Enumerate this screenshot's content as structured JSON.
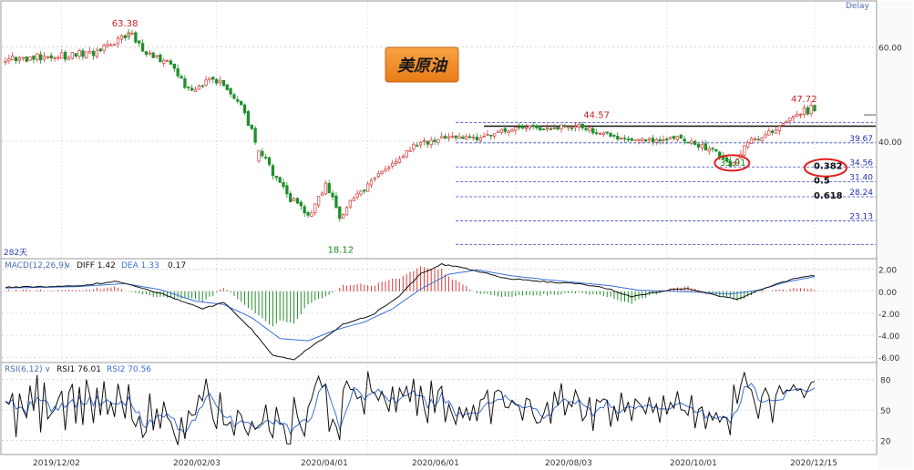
{
  "badge_text": "美原油",
  "delay_text": "Delay",
  "days_label": "282天",
  "macd": {
    "label": "MACD(12,26,9)",
    "diff_label": "DIFF 1.42",
    "dea_label": "DEA 1.33",
    "hist_label": "0.17"
  },
  "rsi": {
    "label": "RSI(6,12)",
    "rsi1_label": "RSI1 76.01",
    "rsi2_label": "RSI2 70.56"
  },
  "colors": {
    "up": "#d63a3a",
    "down": "#1f8f2a",
    "fib": "#3344bb",
    "resistance": "#111111",
    "highlight": "#e02020",
    "badge_bg": "#f28c28",
    "badge_text": "#1a1a1a",
    "grid": "#c8c8c8",
    "diff": "#111111",
    "dea": "#3a6fd8"
  },
  "chart_data": [
    {
      "type": "candlestick",
      "title": "美原油",
      "x_ticks": [
        "2019/12/02",
        "2020/02/03",
        "2020/04/01",
        "2020/06/01",
        "2020/08/03",
        "2020/10/01",
        "2020/12/15"
      ],
      "y_ticks": [
        40.0,
        60.0
      ],
      "y_tick_labels": [
        "40.00",
        "60.00"
      ],
      "ylim": [
        15.3,
        68.4
      ],
      "annotations": {
        "high": {
          "label": "63.38",
          "value": 63.38,
          "x": "2020/01/07"
        },
        "low": {
          "label": "18.12",
          "value": 18.12,
          "x": "2020/04/21"
        },
        "mid_high": {
          "label": "44.57",
          "value": 44.57,
          "x": "2020/08/26"
        },
        "recent_high": {
          "label": "47.72",
          "value": 47.72,
          "x": "2020/12/15"
        },
        "circled_low": {
          "label": "35.01",
          "value": 35.01,
          "x": "2020/11/02"
        }
      },
      "resistance_line": {
        "value": 43.2
      },
      "fib_levels": [
        {
          "price": 44.0,
          "price_label": "",
          "ratio": ""
        },
        {
          "price": 39.67,
          "price_label": "39.67",
          "ratio": ""
        },
        {
          "price": 34.56,
          "price_label": "34.56",
          "ratio": "0.382"
        },
        {
          "price": 31.4,
          "price_label": "31.40",
          "ratio": "0.5"
        },
        {
          "price": 28.24,
          "price_label": "28.24",
          "ratio": "0.618"
        },
        {
          "price": 23.13,
          "price_label": "23.13",
          "ratio": ""
        },
        {
          "price": 18.12,
          "price_label": "",
          "ratio": ""
        }
      ],
      "close_anchors": [
        [
          0,
          57.4
        ],
        [
          10,
          57.8
        ],
        [
          18,
          58.2
        ],
        [
          25,
          59.0
        ],
        [
          32,
          61.5
        ],
        [
          35,
          63.0
        ],
        [
          40,
          58.5
        ],
        [
          46,
          56.5
        ],
        [
          52,
          51.0
        ],
        [
          56,
          52.5
        ],
        [
          60,
          53.0
        ],
        [
          66,
          48.5
        ],
        [
          70,
          42.5
        ],
        [
          73,
          37.0
        ],
        [
          80,
          28.5
        ],
        [
          86,
          24.0
        ],
        [
          91,
          30.5
        ],
        [
          95,
          24.5
        ],
        [
          100,
          28.5
        ],
        [
          110,
          35.5
        ],
        [
          116,
          39.0
        ],
        [
          124,
          40.5
        ],
        [
          134,
          40.8
        ],
        [
          142,
          42.5
        ],
        [
          150,
          42.8
        ],
        [
          163,
          43.3
        ],
        [
          170,
          41.5
        ],
        [
          180,
          40.0
        ],
        [
          190,
          41.0
        ],
        [
          196,
          39.5
        ],
        [
          202,
          37.5
        ],
        [
          206,
          35.3
        ],
        [
          210,
          38.8
        ],
        [
          218,
          42.5
        ],
        [
          224,
          45.5
        ],
        [
          230,
          47.0
        ]
      ]
    },
    {
      "type": "line",
      "title": "MACD(12,26,9)",
      "y_ticks": [
        2.0,
        0.0,
        -2.0,
        -4.0,
        -6.0
      ],
      "y_tick_labels": [
        "2.00",
        "0.00",
        "-2.00",
        "-4.00",
        "-6.00"
      ],
      "ylim": [
        -6.4,
        2.8
      ],
      "diff_anchors": [
        [
          0,
          0.35
        ],
        [
          20,
          0.5
        ],
        [
          32,
          0.9
        ],
        [
          36,
          0.55
        ],
        [
          46,
          -0.4
        ],
        [
          56,
          -1.6
        ],
        [
          62,
          -1.0
        ],
        [
          70,
          -3.5
        ],
        [
          76,
          -5.8
        ],
        [
          82,
          -6.2
        ],
        [
          88,
          -4.8
        ],
        [
          96,
          -3.0
        ],
        [
          104,
          -2.2
        ],
        [
          112,
          -0.4
        ],
        [
          118,
          1.6
        ],
        [
          124,
          2.45
        ],
        [
          132,
          2.0
        ],
        [
          142,
          1.2
        ],
        [
          152,
          0.9
        ],
        [
          162,
          0.7
        ],
        [
          170,
          0.35
        ],
        [
          178,
          -0.5
        ],
        [
          188,
          0.1
        ],
        [
          194,
          0.25
        ],
        [
          202,
          -0.4
        ],
        [
          208,
          -0.7
        ],
        [
          216,
          0.3
        ],
        [
          224,
          1.15
        ],
        [
          230,
          1.42
        ]
      ],
      "dea_anchors": [
        [
          0,
          0.3
        ],
        [
          20,
          0.42
        ],
        [
          34,
          0.7
        ],
        [
          44,
          0.15
        ],
        [
          54,
          -0.9
        ],
        [
          62,
          -1.2
        ],
        [
          70,
          -2.4
        ],
        [
          78,
          -4.3
        ],
        [
          86,
          -4.5
        ],
        [
          94,
          -3.5
        ],
        [
          102,
          -2.8
        ],
        [
          110,
          -1.6
        ],
        [
          118,
          0.2
        ],
        [
          126,
          1.55
        ],
        [
          134,
          1.95
        ],
        [
          144,
          1.4
        ],
        [
          154,
          1.05
        ],
        [
          164,
          0.75
        ],
        [
          172,
          0.5
        ],
        [
          180,
          0.1
        ],
        [
          190,
          0.0
        ],
        [
          198,
          -0.1
        ],
        [
          206,
          -0.25
        ],
        [
          214,
          0.1
        ],
        [
          222,
          0.85
        ],
        [
          230,
          1.33
        ]
      ]
    },
    {
      "type": "line",
      "title": "RSI(6,12)",
      "y_ticks": [
        80,
        50,
        20
      ],
      "y_tick_labels": [
        "80",
        "50",
        "20"
      ],
      "ylim": [
        8,
        95
      ]
    }
  ]
}
